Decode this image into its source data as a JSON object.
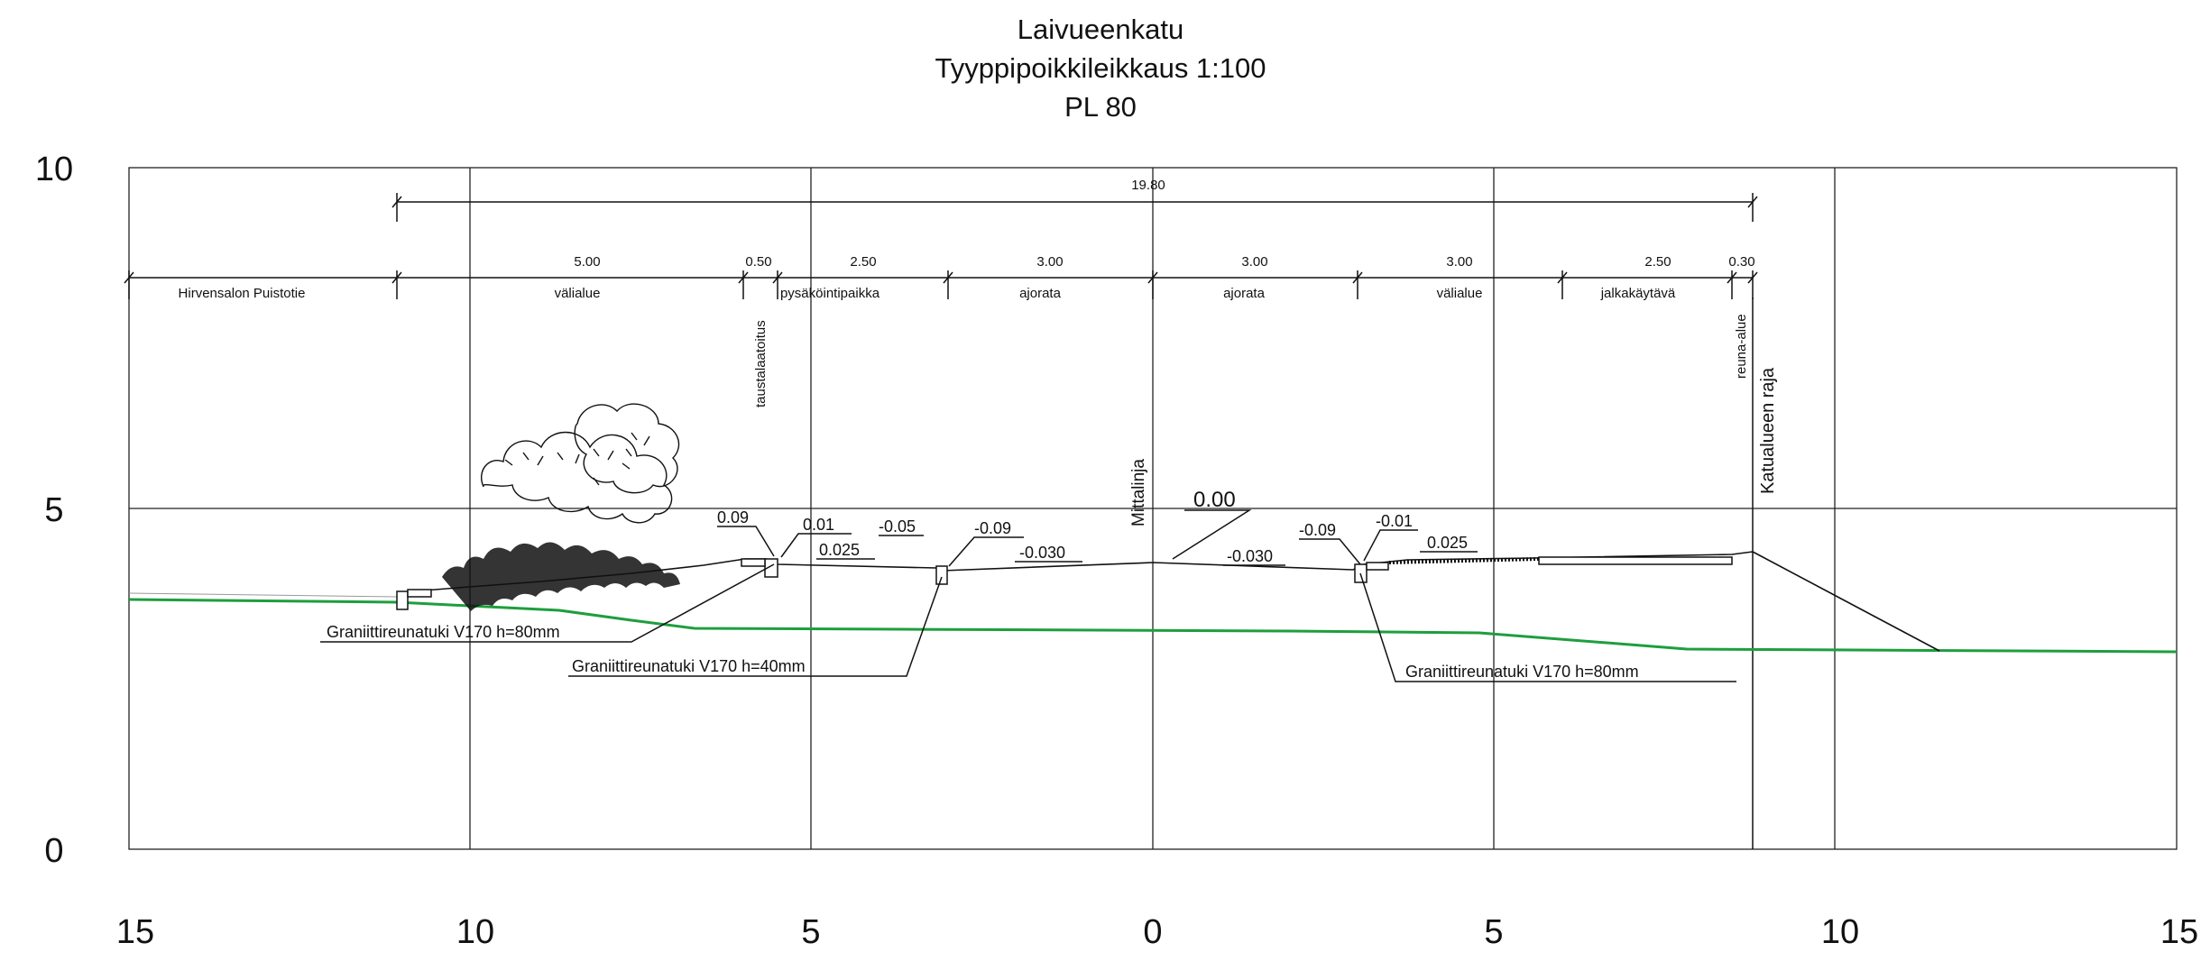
{
  "title": {
    "line1": "Laivueenkatu",
    "line2": "Tyyppipoikkileikkaus 1:100",
    "line3": "PL 80"
  },
  "axes": {
    "y_ticks": [
      "10",
      "5",
      "0"
    ],
    "x_ticks": [
      "15",
      "10",
      "5",
      "0",
      "5",
      "10",
      "15"
    ]
  },
  "dimensions": {
    "total": "19.80",
    "segments": [
      "5.00",
      "0.50",
      "2.50",
      "3.00",
      "3.00",
      "3.00",
      "2.50",
      "0.30"
    ]
  },
  "zones": {
    "hirvensalon": "Hirvensalon Puistotie",
    "valialue_left": "välialue",
    "pysakointipaikka": "pysäköintipaikka",
    "ajorata_left": "ajorata",
    "ajorata_right": "ajorata",
    "valialue_right": "välialue",
    "jalkakaytava": "jalkakäytävä"
  },
  "vertical_labels": {
    "taustalaatoitus": "taustalaatoitus",
    "reuna_alue": "reuna-alue",
    "katualueen_raja": "Katualueen raja",
    "mittalinja": "Mittalinja"
  },
  "elevations": {
    "zero": "0.00",
    "e1": "0.09",
    "e2": "0.01",
    "e3": "0.025",
    "e4": "-0.05",
    "e5": "-0.09",
    "e6": "-0.030",
    "e7": "-0.030",
    "e8": "-0.09",
    "e9": "-0.01",
    "e10": "0.025"
  },
  "callouts": {
    "c1": "Graniittireunatuki V170 h=80mm",
    "c2": "Graniittireunatuki V170 h=40mm",
    "c3": "Graniittireunatuki V170 h=80mm"
  },
  "colors": {
    "ground_line": "#1e9e3e",
    "grid": "#222222",
    "ink": "#111111"
  }
}
